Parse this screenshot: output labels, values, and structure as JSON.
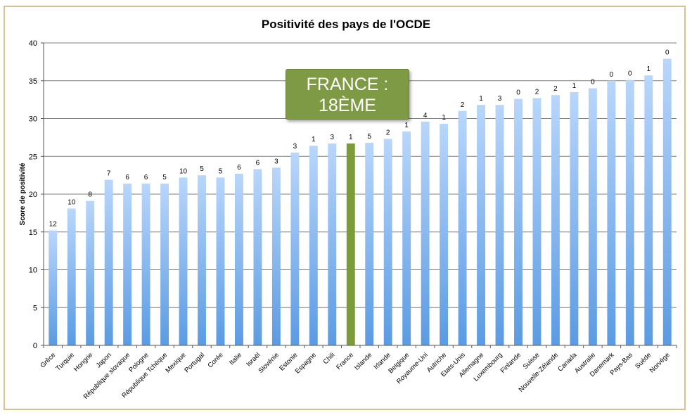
{
  "chart_data": {
    "type": "bar",
    "title": "Positivité des pays de l'OCDE",
    "ylabel": "Score de positivité",
    "xlabel": "",
    "ylim": [
      0,
      40
    ],
    "yticks": [
      0,
      5,
      10,
      15,
      20,
      25,
      30,
      35,
      40
    ],
    "grid": true,
    "categories": [
      "Grèce",
      "Turquie",
      "Hongrie",
      "Japon",
      "République slovaque",
      "Pologne",
      "République Tchèque",
      "Mexique",
      "Portugal",
      "Corée",
      "Italie",
      "Israël",
      "Slovénie",
      "Estonie",
      "Espagne",
      "Chili",
      "France",
      "Islande",
      "Irlande",
      "Belgique",
      "Royaume-Uni",
      "Autriche",
      "Etats-Unis",
      "Allemagne",
      "Luxembourg",
      "Finlande",
      "Suisse",
      "Nouvelle-Zélande",
      "Canada",
      "Australie",
      "Danemark",
      "Pays-Bas",
      "Suède",
      "Norvège"
    ],
    "values": [
      15.2,
      18.1,
      19.1,
      21.9,
      21.4,
      21.4,
      21.4,
      22.2,
      22.5,
      22.2,
      22.7,
      23.3,
      23.5,
      25.5,
      26.4,
      26.7,
      26.7,
      26.8,
      27.3,
      28.3,
      29.6,
      29.3,
      31.0,
      31.8,
      31.8,
      32.6,
      32.7,
      33.1,
      33.5,
      34.0,
      35.0,
      35.1,
      35.7,
      37.9
    ],
    "data_labels": [
      "12",
      "10",
      "8",
      "7",
      "6",
      "6",
      "5",
      "10",
      "5",
      "5",
      "6",
      "6",
      "3",
      "3",
      "1",
      "3",
      "1",
      "5",
      "2",
      "1",
      "4",
      "1",
      "2",
      "1",
      "3",
      "0",
      "2",
      "2",
      "1",
      "0",
      "0",
      "0",
      "1",
      "0"
    ],
    "highlight_index": 16,
    "colors": {
      "bar_top": "#b9d6fb",
      "bar_bottom": "#5a9be3",
      "highlight": "#7e9b3c",
      "grid": "#7f7f7f",
      "frame": "#d8c48a"
    }
  },
  "callout": {
    "line1": "FRANCE :",
    "line2": "18ÈME"
  }
}
